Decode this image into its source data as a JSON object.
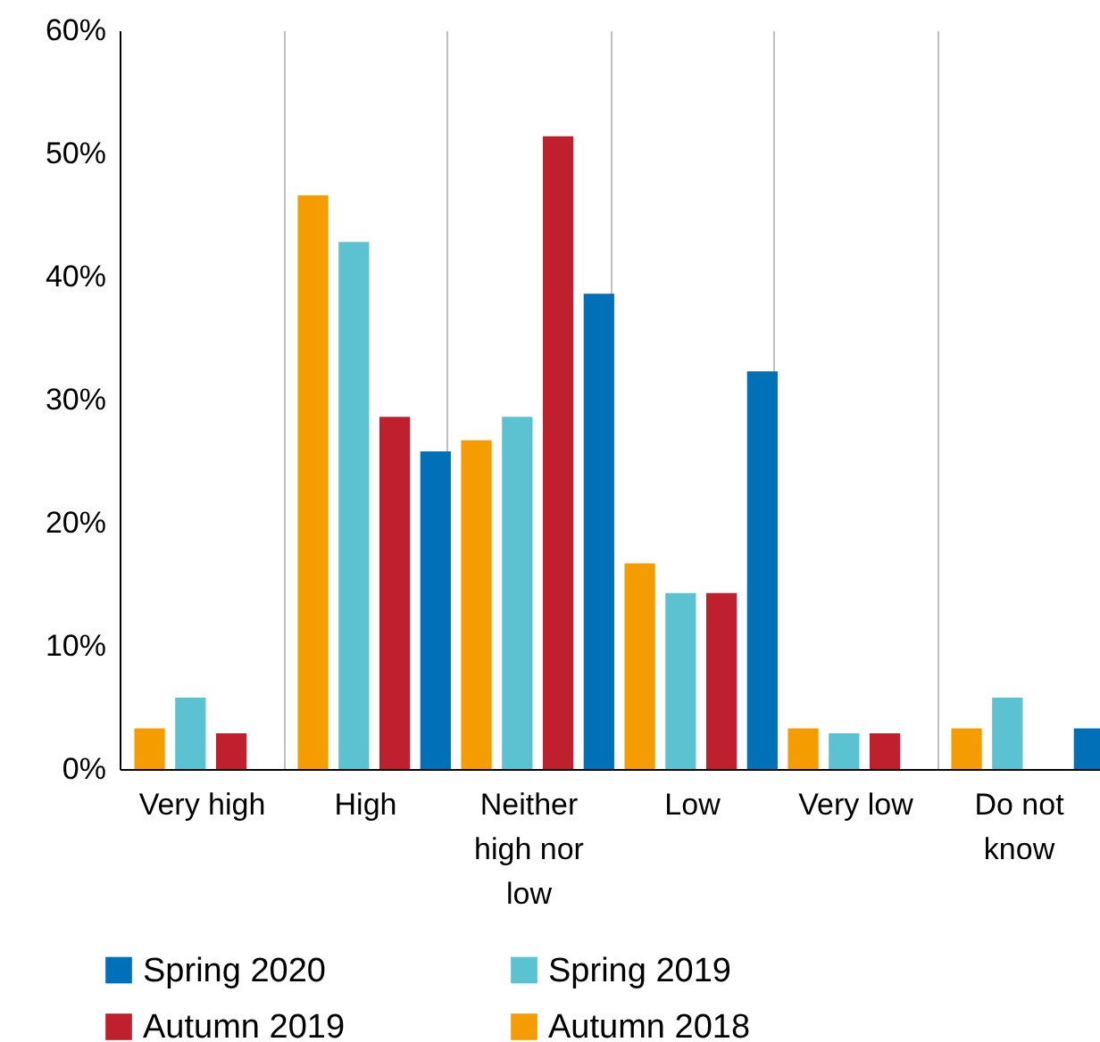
{
  "chart_data": {
    "type": "bar",
    "categories": [
      "Very high",
      "High",
      "Neither high nor low",
      "Low",
      "Very low",
      "Do not know"
    ],
    "series": [
      {
        "name": "Autumn 2018",
        "color": "#f59c00",
        "values": [
          3.3,
          46.6,
          26.7,
          16.7,
          3.3,
          3.3
        ]
      },
      {
        "name": "Spring 2019",
        "color": "#5bc2d1",
        "values": [
          5.8,
          42.8,
          28.6,
          14.3,
          2.9,
          5.8
        ]
      },
      {
        "name": "Autumn 2019",
        "color": "#c0202e",
        "values": [
          2.9,
          28.6,
          51.4,
          14.3,
          2.9,
          0
        ]
      },
      {
        "name": "Spring 2020",
        "color": "#0070b8",
        "values": [
          0,
          25.8,
          38.6,
          32.3,
          0,
          3.3
        ]
      }
    ],
    "ylim": [
      0,
      60
    ],
    "yticks": [
      {
        "value": 0,
        "label": "0%"
      },
      {
        "value": 10,
        "label": "10%"
      },
      {
        "value": 20,
        "label": "20%"
      },
      {
        "value": 30,
        "label": "30%"
      },
      {
        "value": 40,
        "label": "40%"
      },
      {
        "value": 50,
        "label": "50%"
      },
      {
        "value": 60,
        "label": "60%"
      }
    ],
    "grid": "x",
    "legend": "bottom"
  }
}
